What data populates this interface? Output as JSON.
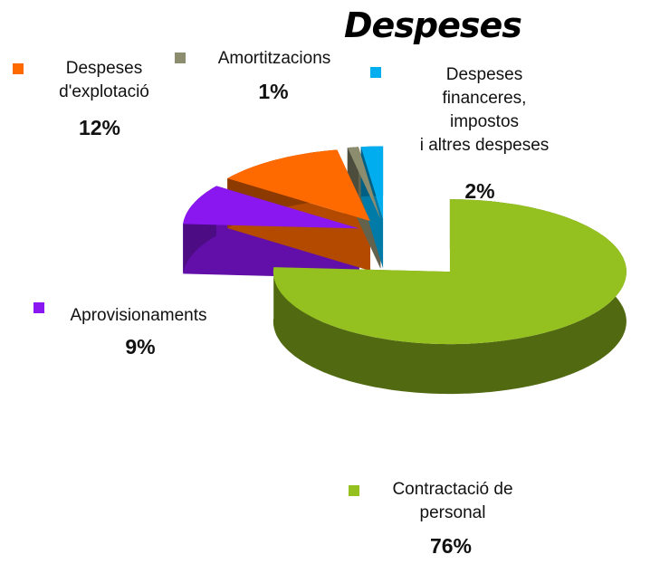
{
  "chart_data": {
    "type": "pie",
    "title": "Despeses",
    "categories": [
      "Contractació de\npersonal",
      "Aprovisionaments",
      "Despeses\nd'explotació",
      "Amortitzacions",
      "Despeses\nfinanceres,\nimpostos\ni altres despeses"
    ],
    "values": [
      76,
      9,
      12,
      1,
      2
    ],
    "value_labels": [
      "76%",
      "9%",
      "12%",
      "1%",
      "2%"
    ],
    "colors": [
      "#94c11f",
      "#8a16f0",
      "#ff6a00",
      "#8c8c6e",
      "#00aeef"
    ]
  }
}
